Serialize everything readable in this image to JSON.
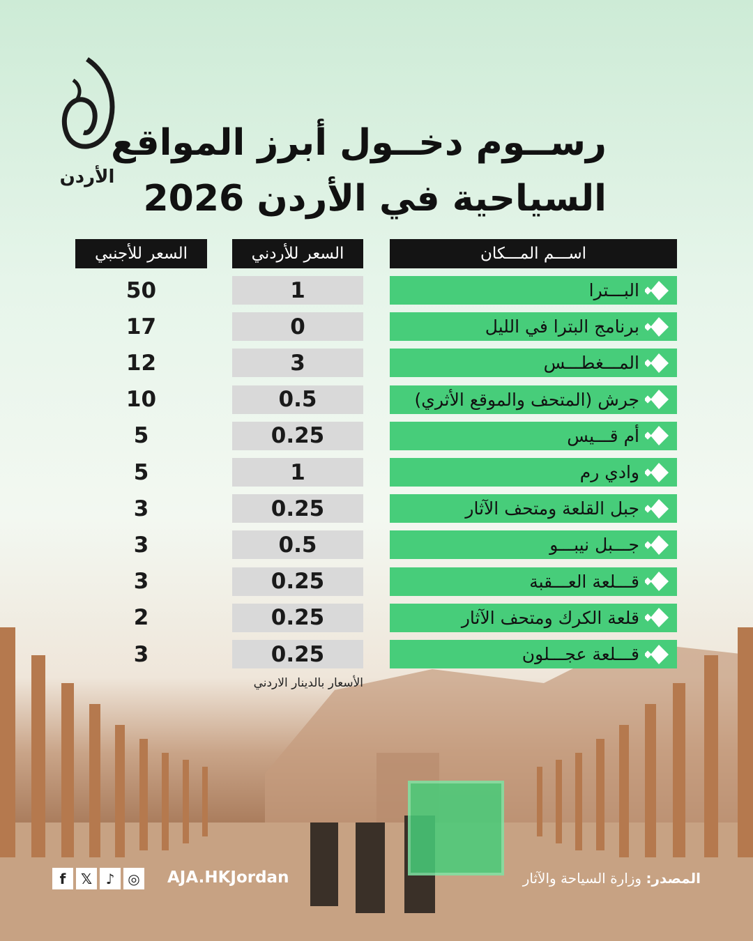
{
  "logo": {
    "text": "الجزيرة",
    "subtitle": "الأردن"
  },
  "title": {
    "line1": "رســوم دخــول أبرز المواقع",
    "line2": "السياحية في الأردن 2026"
  },
  "chart_data": {
    "type": "table",
    "columns": [
      "اســـم المـــكان",
      "السعر للأردني",
      "السعر للأجنبي"
    ],
    "rows": [
      {
        "place": "البـــترا",
        "local": "1",
        "foreign": "50"
      },
      {
        "place": "برنامج البترا في الليل",
        "local": "0",
        "foreign": "17"
      },
      {
        "place": "المـــغطـــس",
        "local": "3",
        "foreign": "12"
      },
      {
        "place": "جرش (المتحف والموقع الأثري)",
        "local": "0.5",
        "foreign": "10"
      },
      {
        "place": "أم قـــيس",
        "local": "0.25",
        "foreign": "5"
      },
      {
        "place": "وادي رم",
        "local": "1",
        "foreign": "5"
      },
      {
        "place": "جبل القلعة ومتحف الآثار",
        "local": "0.25",
        "foreign": "3"
      },
      {
        "place": "جـــبل نيبـــو",
        "local": "0.5",
        "foreign": "3"
      },
      {
        "place": "قـــلعة العـــقبة",
        "local": "0.25",
        "foreign": "3"
      },
      {
        "place": "قلعة الكرك ومتحف الآثار",
        "local": "0.25",
        "foreign": "2"
      },
      {
        "place": "قـــلعة عجـــلون",
        "local": "0.25",
        "foreign": "3"
      }
    ],
    "note": "الأسعار بالدينار الاردني"
  },
  "colors": {
    "accent": "#47cd7a",
    "header": "#141414",
    "local_cell": "#d9d9d9"
  },
  "footer": {
    "handle": "AJA.HKJordan",
    "source_label": "المصدر:",
    "source": "وزارة السياحة والآثار",
    "social_icons": [
      "facebook-icon",
      "x-icon",
      "tiktok-icon",
      "instagram-icon"
    ]
  }
}
